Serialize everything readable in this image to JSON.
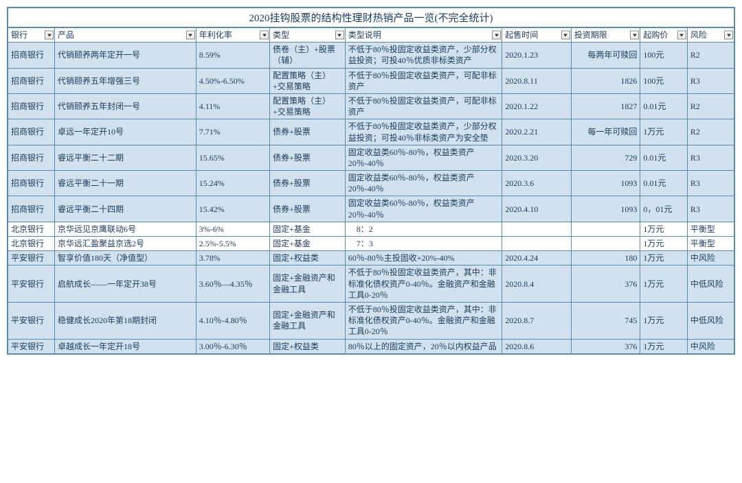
{
  "title": "2020挂钩股票的结构性理财热销产品一览(不完全统计)",
  "headers": {
    "bank": "银行",
    "product": "产品",
    "rate": "年利化率",
    "type": "类型",
    "desc": "类型说明",
    "date": "起售时间",
    "term": "投资期限",
    "price": "起购价",
    "risk": "风险"
  },
  "rows": [
    {
      "cls": "blue",
      "bank": "招商银行",
      "product": "代销颐养两年定开一号",
      "rate": "8.59%",
      "type": "债卷（主）+股票（辅）",
      "desc": "不低于80％投固定收益类资产，少部分权益投资；可投40％优质非标类资产",
      "date": "2020.1.23",
      "term": "每两年可赎回",
      "term_align": "right",
      "price": "100元",
      "risk": "R2"
    },
    {
      "cls": "blue",
      "bank": "招商银行",
      "product": "代销颐养五年增强三号",
      "rate": "4.50%-6.50%",
      "type": "配置策略（主）+交易策略",
      "desc": "不低于80％投固定收益类资产，可配非标资产",
      "date": "2020.8.11",
      "term": "1826",
      "term_align": "right",
      "price": "100元",
      "risk": "R3"
    },
    {
      "cls": "blue",
      "bank": "招商银行",
      "product": "代销颐养五年封闭一号",
      "rate": "4.11%",
      "type": "配置策略（主）+交易策略",
      "desc": "不低于80％投固定收益类资产，可配非标资产",
      "date": "2020.1.22",
      "term": "1827",
      "term_align": "right",
      "price": "0.01元",
      "risk": "R2"
    },
    {
      "cls": "blue",
      "bank": "招商银行",
      "product": "卓远一年定开10号",
      "rate": "7.71%",
      "type": "债券+股票",
      "desc": "不低于80％投固定收益类资产，少部分权益投资；可投40％非标类资产为安全垫",
      "date": "2020.2.21",
      "term": "每一年可赎回",
      "term_align": "right",
      "price": "1万元",
      "risk": "R2"
    },
    {
      "cls": "blue",
      "bank": "招商银行",
      "product": "睿远平衡二十二期",
      "rate": "15.65%",
      "type": "债券+股票",
      "desc": "固定收益类60％-80％，权益类资产20％-40％",
      "date": "2020.3.20",
      "term": "729",
      "term_align": "right",
      "price": "0.01元",
      "risk": "R3"
    },
    {
      "cls": "blue",
      "bank": "招商银行",
      "product": "睿远平衡二十一期",
      "rate": "15.24%",
      "type": "债券+股票",
      "desc": "固定收益类60％-80％，权益类资产20％-40％",
      "date": "2020.3.6",
      "term": "1093",
      "term_align": "right",
      "price": "0.01元",
      "risk": "R3"
    },
    {
      "cls": "blue",
      "bank": "招商银行",
      "product": "睿远平衡二十四期",
      "rate": "15.42%",
      "type": "债券+股票",
      "desc": "固定收益类60％-80％，权益类资产20％-40％",
      "date": "2020.4.10",
      "term": "1093",
      "term_align": "right",
      "price": "0，01元",
      "risk": "R3"
    },
    {
      "cls": "white",
      "bank": "北京银行",
      "product": "京华远见京鹰联动6号",
      "rate": "3%-6%",
      "type": "固定+基金",
      "desc": "　8：2",
      "date_diag": true,
      "term_diag": true,
      "price": "1万元",
      "risk": "平衡型"
    },
    {
      "cls": "white",
      "bank": "北京银行",
      "product": "京华远汇盈聚益京选2号",
      "rate": "2.5%-5.5%",
      "type": "固定+基金",
      "desc": "　7：3",
      "date_diag": true,
      "term_diag": true,
      "price": "1万元",
      "risk": "平衡型"
    },
    {
      "cls": "blue",
      "bank": "平安银行",
      "product": "智享价值180天（净值型）",
      "rate": "3.78%",
      "type": "固定+权益类",
      "desc": "60％-80％主投固收+20%-40%",
      "date": "2020.4.24",
      "term": "180",
      "term_align": "right",
      "price": "1万元",
      "risk": "中风险"
    },
    {
      "cls": "blue",
      "bank": "平安银行",
      "product": "启航成长——一年定开38号",
      "rate": "3.60％—4.35％",
      "type": "固定+金融资产和金融工具",
      "desc": "不低于80％投固定收益类资产，其中：非标准化债权资产0-40％。金融资产和金融工具0-20％",
      "date": "2020.8.4",
      "term": "376",
      "term_align": "right",
      "price": "1万元",
      "risk": "中低风险"
    },
    {
      "cls": "blue",
      "bank": "平安银行",
      "product": "稳健成长2020年第18期封闭",
      "rate": "4.10％-4.80％",
      "type": "固定+金融资产和金融工具",
      "desc": "不低于80％投固定收益类资产，其中：非标准化债权资产0-40％。金融资产和金融工具0-20％",
      "date": "2020.8.7",
      "term": "745",
      "term_align": "right",
      "price": "1万元",
      "risk": "中低风险"
    },
    {
      "cls": "blue",
      "bank": "平安银行",
      "product": "卓越成长一年定开18号",
      "rate": "3.00％-6.30％",
      "type": "固定+权益类",
      "desc": "80％以上的固定资产，20％以内权益产品",
      "date": "2020.8.6",
      "term": "376",
      "term_align": "right",
      "price": "1万元",
      "risk": "中风险"
    }
  ]
}
